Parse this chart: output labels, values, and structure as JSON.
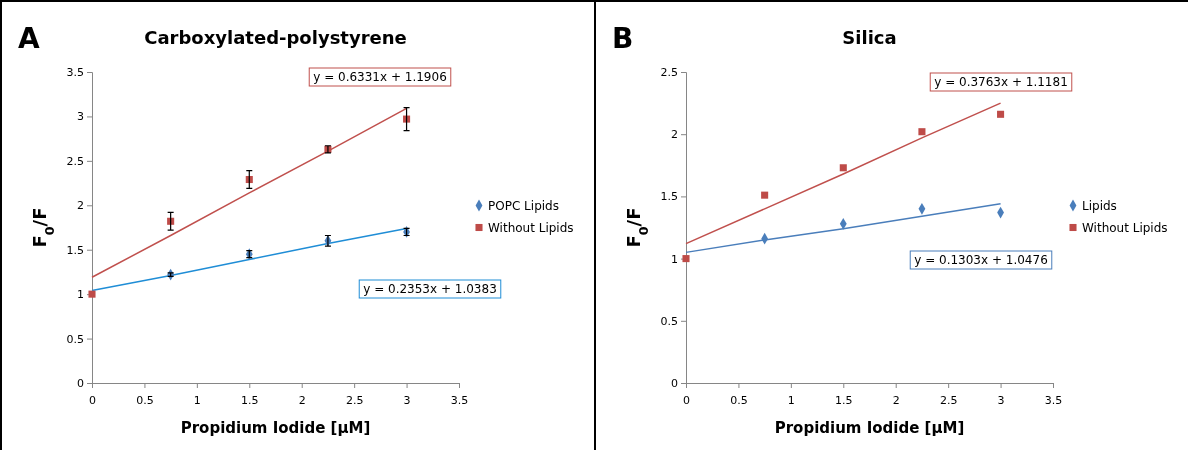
{
  "chart_data": [
    {
      "type": "scatter",
      "title": "Carboxylated-polystyrene",
      "xlabel": "Propidium Iodide [µM]",
      "ylabel": "F$_{0}$/F",
      "x": [
        0,
        0.75,
        1.5,
        2.25,
        3
      ],
      "xlim": [
        0,
        3.5
      ],
      "xticks": [
        0,
        0.5,
        1,
        1.5,
        2,
        2.5,
        3,
        3.5
      ],
      "ylim": [
        0,
        3.5
      ],
      "yticks": [
        0,
        0.5,
        1,
        1.5,
        2,
        2.5,
        3,
        3.5
      ],
      "grid": false,
      "legend": "right",
      "annotations": [
        "A",
        "y = 0.6331x + 1.1906",
        "y = 0.2353x + 1.0383"
      ],
      "series": [
        {
          "name": "POPC Lipids",
          "color": "#4a7ebb",
          "marker": "diamond",
          "values": [
            null,
            1.22,
            1.45,
            1.6,
            1.7
          ],
          "errors": [
            null,
            0.02,
            0.04,
            0.06,
            0.04
          ]
        },
        {
          "name": "Without Lipids",
          "color": "#be4b48",
          "marker": "square",
          "values": [
            1,
            1.82,
            2.29,
            2.63,
            2.97
          ],
          "errors": [
            null,
            0.1,
            0.1,
            0.04,
            0.13
          ]
        },
        {
          "type": "line",
          "color": "#c0504d",
          "values": [
            1.19,
            1.66,
            2.14,
            2.61,
            3.09
          ]
        },
        {
          "type": "line",
          "color": "#1f8dd6",
          "values": [
            1.04,
            1.21,
            1.39,
            1.57,
            1.74
          ]
        }
      ]
    },
    {
      "type": "scatter",
      "title": "Silica",
      "xlabel": "Propidium Iodide [µM]",
      "ylabel": "F$_{0}$/F",
      "x": [
        0,
        0.75,
        1.5,
        2.25,
        3
      ],
      "xlim": [
        0,
        3.5
      ],
      "xticks": [
        0,
        0.5,
        1,
        1.5,
        2,
        2.5,
        3,
        3.5
      ],
      "ylim": [
        0,
        2.5
      ],
      "yticks": [
        0,
        0.5,
        1,
        1.5,
        2,
        2.5
      ],
      "grid": false,
      "legend": "right",
      "annotations": [
        "B",
        "y = 0.3763x + 1.1181",
        "y = 0.1303x + 1.0476"
      ],
      "series": [
        {
          "name": "Lipids",
          "color": "#4a7ebb",
          "marker": "diamond",
          "values": [
            null,
            1.16,
            1.28,
            1.4,
            1.37
          ]
        },
        {
          "name": "Without Lipids",
          "color": "#be4b48",
          "marker": "square",
          "values": [
            1,
            1.51,
            1.73,
            2.02,
            2.16
          ]
        },
        {
          "type": "line",
          "color": "#c0504d",
          "values": [
            1.12,
            1.4,
            1.68,
            1.97,
            2.25
          ]
        },
        {
          "type": "line",
          "color": "#4a7ebb",
          "values": [
            1.05,
            1.15,
            1.24,
            1.34,
            1.44
          ]
        }
      ]
    }
  ]
}
